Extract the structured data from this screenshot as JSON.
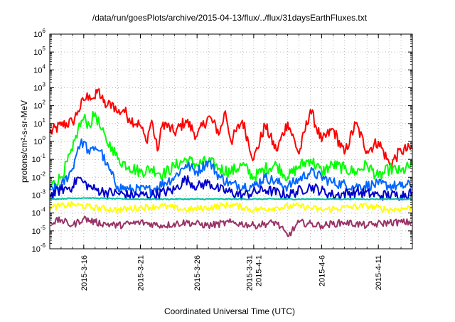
{
  "chart_data": {
    "type": "line",
    "title": "/data/run/goesPlots/archive/2015-04-13/flux/../flux/31daysEarthFluxes.txt",
    "xlabel": "Coordinated Universal Time (UTC)",
    "ylabel": "protons/cm²-s-sr-MeV",
    "y_scale": "log",
    "ylim": [
      1e-06,
      1000000.0
    ],
    "xlim": [
      "2015-03-13",
      "2015-04-14"
    ],
    "grid": true,
    "legend": "none",
    "y_tick_labels": [
      {
        "base": "10",
        "exp": "-6"
      },
      {
        "base": "10",
        "exp": "-5"
      },
      {
        "base": "10",
        "exp": "-4"
      },
      {
        "base": "10",
        "exp": "-3"
      },
      {
        "base": "10",
        "exp": "-2"
      },
      {
        "base": "10",
        "exp": "-1"
      },
      {
        "base": "10",
        "exp": "0"
      },
      {
        "base": "10",
        "exp": "1"
      },
      {
        "base": "10",
        "exp": "2"
      },
      {
        "base": "10",
        "exp": "3"
      },
      {
        "base": "10",
        "exp": "4"
      },
      {
        "base": "10",
        "exp": "5"
      },
      {
        "base": "10",
        "exp": "6"
      }
    ],
    "x_ticks": [
      {
        "date": "2015-03-16",
        "lines": [
          "2015-3-16"
        ]
      },
      {
        "date": "2015-03-21",
        "lines": [
          "2015-3-21"
        ]
      },
      {
        "date": "2015-03-26",
        "lines": [
          "2015-3-26"
        ]
      },
      {
        "date": "2015-03-31",
        "lines": [
          "2015-3-31",
          "2015-4-1"
        ]
      },
      {
        "date": "2015-04-06",
        "lines": [
          "2015-4-6"
        ]
      },
      {
        "date": "2015-04-11",
        "lines": [
          "2015-4-11"
        ]
      }
    ],
    "series": [
      {
        "color": "#ff0000",
        "points": [
          [
            "2015-03-13",
            3
          ],
          [
            "2015-03-14",
            8
          ],
          [
            "2015-03-15",
            12
          ],
          [
            "2015-03-15T12",
            50
          ],
          [
            "2015-03-16",
            200
          ],
          [
            "2015-03-16T12",
            400
          ],
          [
            "2015-03-17",
            250
          ],
          [
            "2015-03-17T06",
            800
          ],
          [
            "2015-03-17T18",
            150
          ],
          [
            "2015-03-18",
            90
          ],
          [
            "2015-03-18T12",
            150
          ],
          [
            "2015-03-19",
            40
          ],
          [
            "2015-03-19T12",
            60
          ],
          [
            "2015-03-20",
            20
          ],
          [
            "2015-03-21",
            8
          ],
          [
            "2015-03-21T12",
            1
          ],
          [
            "2015-03-22",
            15
          ],
          [
            "2015-03-22T12",
            0.3
          ],
          [
            "2015-03-23",
            12
          ],
          [
            "2015-03-24",
            3
          ],
          [
            "2015-03-25",
            15
          ],
          [
            "2015-03-26",
            2
          ],
          [
            "2015-03-27",
            25
          ],
          [
            "2015-03-28",
            3
          ],
          [
            "2015-03-28T12",
            50
          ],
          [
            "2015-03-29",
            1
          ],
          [
            "2015-03-30",
            15
          ],
          [
            "2015-03-31",
            0.1
          ],
          [
            "2015-04-01",
            8
          ],
          [
            "2015-04-02",
            0.3
          ],
          [
            "2015-04-03",
            12
          ],
          [
            "2015-04-04",
            0.2
          ],
          [
            "2015-04-05",
            60
          ],
          [
            "2015-04-06",
            1
          ],
          [
            "2015-04-07",
            5
          ],
          [
            "2015-04-08",
            0.2
          ],
          [
            "2015-04-09",
            10
          ],
          [
            "2015-04-10",
            0.3
          ],
          [
            "2015-04-11",
            1
          ],
          [
            "2015-04-12",
            0.05
          ],
          [
            "2015-04-13",
            0.3
          ],
          [
            "2015-04-14",
            0.4
          ]
        ]
      },
      {
        "color": "#00ff00",
        "points": [
          [
            "2015-03-13",
            0.003
          ],
          [
            "2015-03-14",
            0.01
          ],
          [
            "2015-03-15",
            0.3
          ],
          [
            "2015-03-15T12",
            5
          ],
          [
            "2015-03-16",
            20
          ],
          [
            "2015-03-16T12",
            8
          ],
          [
            "2015-03-17",
            40
          ],
          [
            "2015-03-17T12",
            5
          ],
          [
            "2015-03-18",
            1
          ],
          [
            "2015-03-18T12",
            0.5
          ],
          [
            "2015-03-19",
            0.1
          ],
          [
            "2015-03-20",
            0.04
          ],
          [
            "2015-03-21",
            0.02
          ],
          [
            "2015-03-22",
            0.03
          ],
          [
            "2015-03-23",
            0.015
          ],
          [
            "2015-03-24",
            0.04
          ],
          [
            "2015-03-25",
            0.1
          ],
          [
            "2015-03-26",
            0.05
          ],
          [
            "2015-03-27",
            0.08
          ],
          [
            "2015-03-28",
            0.03
          ],
          [
            "2015-03-29",
            0.02
          ],
          [
            "2015-03-30",
            0.05
          ],
          [
            "2015-03-31",
            0.01
          ],
          [
            "2015-04-01",
            0.03
          ],
          [
            "2015-04-02",
            0.05
          ],
          [
            "2015-04-03",
            0.01
          ],
          [
            "2015-04-04",
            0.04
          ],
          [
            "2015-04-05",
            0.1
          ],
          [
            "2015-04-06",
            0.02
          ],
          [
            "2015-04-07",
            0.05
          ],
          [
            "2015-04-08",
            0.03
          ],
          [
            "2015-04-09",
            0.02
          ],
          [
            "2015-04-10",
            0.05
          ],
          [
            "2015-04-11",
            0.01
          ],
          [
            "2015-04-12",
            0.03
          ],
          [
            "2015-04-13",
            0.02
          ],
          [
            "2015-04-14",
            0.05
          ]
        ]
      },
      {
        "color": "#0066ff",
        "points": [
          [
            "2015-03-13",
            0.002
          ],
          [
            "2015-03-14",
            0.003
          ],
          [
            "2015-03-15",
            0.03
          ],
          [
            "2015-03-15T12",
            0.5
          ],
          [
            "2015-03-16",
            1
          ],
          [
            "2015-03-16T12",
            0.2
          ],
          [
            "2015-03-17",
            0.5
          ],
          [
            "2015-03-17T12",
            0.3
          ],
          [
            "2015-03-18",
            0.05
          ],
          [
            "2015-03-19",
            0.003
          ],
          [
            "2015-03-20",
            0.002
          ],
          [
            "2015-03-22",
            0.002
          ],
          [
            "2015-03-24",
            0.01
          ],
          [
            "2015-03-25",
            0.05
          ],
          [
            "2015-03-26",
            0.02
          ],
          [
            "2015-03-27",
            0.08
          ],
          [
            "2015-03-28",
            0.01
          ],
          [
            "2015-03-29",
            0.004
          ],
          [
            "2015-03-31",
            0.003
          ],
          [
            "2015-04-01",
            0.01
          ],
          [
            "2015-04-03",
            0.003
          ],
          [
            "2015-04-05",
            0.02
          ],
          [
            "2015-04-07",
            0.005
          ],
          [
            "2015-04-09",
            0.003
          ],
          [
            "2015-04-11",
            0.004
          ],
          [
            "2015-04-13",
            0.003
          ],
          [
            "2015-04-14",
            0.004
          ]
        ]
      },
      {
        "color": "#0000cc",
        "points": [
          [
            "2015-03-13",
            0.001
          ],
          [
            "2015-03-14",
            0.002
          ],
          [
            "2015-03-15",
            0.003
          ],
          [
            "2015-03-15T12",
            0.01
          ],
          [
            "2015-03-16",
            0.005
          ],
          [
            "2015-03-16T12",
            0.003
          ],
          [
            "2015-03-17",
            0.002
          ],
          [
            "2015-03-18",
            0.0015
          ],
          [
            "2015-03-20",
            0.001
          ],
          [
            "2015-03-22",
            0.001
          ],
          [
            "2015-03-24",
            0.002
          ],
          [
            "2015-03-25",
            0.008
          ],
          [
            "2015-03-26",
            0.003
          ],
          [
            "2015-03-27",
            0.005
          ],
          [
            "2015-03-28",
            0.002
          ],
          [
            "2015-03-30",
            0.001
          ],
          [
            "2015-04-01",
            0.002
          ],
          [
            "2015-04-03",
            0.001
          ],
          [
            "2015-04-05",
            0.003
          ],
          [
            "2015-04-07",
            0.001
          ],
          [
            "2015-04-09",
            0.0015
          ],
          [
            "2015-04-11",
            0.001
          ],
          [
            "2015-04-13",
            0.001
          ],
          [
            "2015-04-14",
            0.0015
          ]
        ]
      },
      {
        "color": "#00c0a0",
        "points": [
          [
            "2015-03-13",
            0.0006
          ],
          [
            "2015-03-16",
            0.0007
          ],
          [
            "2015-03-20",
            0.0006
          ],
          [
            "2015-03-25",
            0.0006
          ],
          [
            "2015-03-30",
            0.0006
          ],
          [
            "2015-04-05",
            0.0006
          ],
          [
            "2015-04-10",
            0.0006
          ],
          [
            "2015-04-14",
            0.0006
          ]
        ]
      },
      {
        "color": "#ffff00",
        "points": [
          [
            "2015-03-13",
            0.0002
          ],
          [
            "2015-03-15",
            0.0003
          ],
          [
            "2015-03-17",
            0.0002
          ],
          [
            "2015-03-19",
            0.00015
          ],
          [
            "2015-03-21",
            0.0002
          ],
          [
            "2015-03-23",
            0.00025
          ],
          [
            "2015-03-25",
            0.00015
          ],
          [
            "2015-03-27",
            0.0002
          ],
          [
            "2015-03-29",
            0.0003
          ],
          [
            "2015-03-31",
            0.00015
          ],
          [
            "2015-04-02",
            0.0002
          ],
          [
            "2015-04-04",
            0.00025
          ],
          [
            "2015-04-06",
            0.00015
          ],
          [
            "2015-04-08",
            0.0002
          ],
          [
            "2015-04-10",
            0.00025
          ],
          [
            "2015-04-12",
            0.00015
          ],
          [
            "2015-04-14",
            0.0002
          ]
        ]
      },
      {
        "color": "#993366",
        "points": [
          [
            "2015-03-13",
            3e-05
          ],
          [
            "2015-03-14",
            4e-05
          ],
          [
            "2015-03-15",
            2e-05
          ],
          [
            "2015-03-16",
            5e-05
          ],
          [
            "2015-03-17",
            3e-05
          ],
          [
            "2015-03-19",
            2e-05
          ],
          [
            "2015-03-21",
            3e-05
          ],
          [
            "2015-03-23",
            2e-05
          ],
          [
            "2015-03-25",
            3e-05
          ],
          [
            "2015-03-27",
            2e-05
          ],
          [
            "2015-03-29",
            3e-05
          ],
          [
            "2015-03-31",
            2e-05
          ],
          [
            "2015-04-02",
            3e-05
          ],
          [
            "2015-04-03",
            5e-06
          ],
          [
            "2015-04-04",
            3e-05
          ],
          [
            "2015-04-06",
            2e-05
          ],
          [
            "2015-04-08",
            3e-05
          ],
          [
            "2015-04-10",
            2e-05
          ],
          [
            "2015-04-12",
            3e-05
          ],
          [
            "2015-04-14",
            3e-05
          ]
        ]
      }
    ]
  }
}
